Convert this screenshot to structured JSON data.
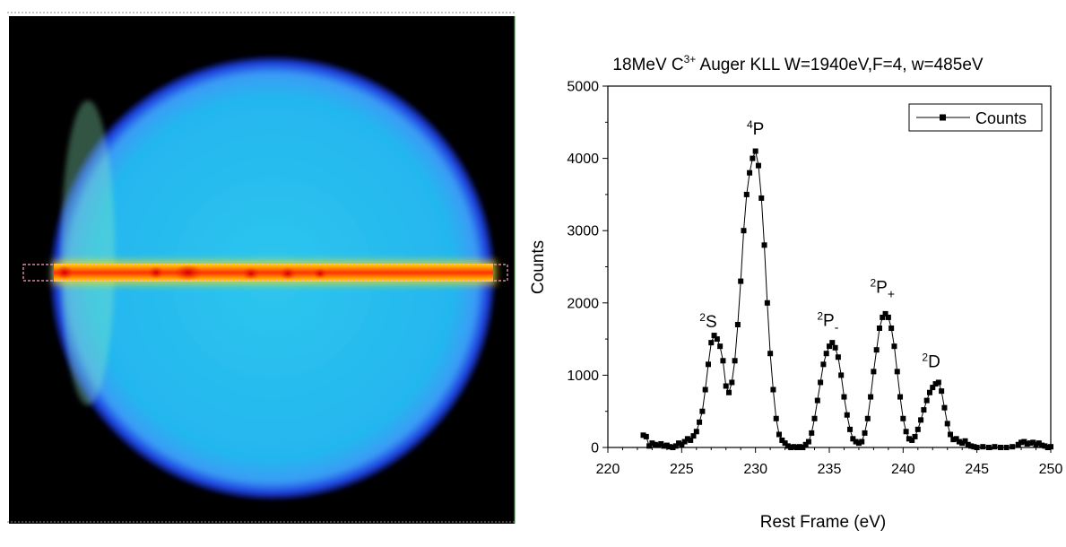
{
  "detector_image": {
    "description_icon": "detector-heatmap-image",
    "colors": {
      "background": "#000000",
      "disk_outer": "#1a3cff",
      "disk_body": "#21b4ef",
      "disk_rim": "#7fe3ff",
      "stripe_core": "#ff2a00",
      "stripe_edge": "#ffd400",
      "selection_box": "#ff9ecf"
    }
  },
  "chart_data": {
    "type": "line",
    "title_parts": {
      "prefix": "18MeV C",
      "superscript": "3+",
      "suffix": " Auger KLL W=1940eV,F=4, w=485eV"
    },
    "xlabel": "Rest Frame (eV)",
    "ylabel": "Counts",
    "xlim": [
      220,
      250
    ],
    "ylim": [
      0,
      5000
    ],
    "x_ticks": [
      220,
      225,
      230,
      235,
      240,
      245,
      250
    ],
    "y_ticks": [
      0,
      1000,
      2000,
      3000,
      4000,
      5000
    ],
    "grid": false,
    "legend": {
      "placement": "top-right",
      "entries": [
        "Counts"
      ]
    },
    "series": [
      {
        "name": "Counts",
        "marker": "square",
        "color": "#000000",
        "points": [
          [
            222.4,
            170
          ],
          [
            222.6,
            150
          ],
          [
            222.8,
            20
          ],
          [
            223.0,
            60
          ],
          [
            223.2,
            40
          ],
          [
            223.4,
            30
          ],
          [
            223.6,
            50
          ],
          [
            223.8,
            20
          ],
          [
            224.0,
            30
          ],
          [
            224.2,
            10
          ],
          [
            224.4,
            0
          ],
          [
            224.6,
            20
          ],
          [
            224.8,
            60
          ],
          [
            225.0,
            40
          ],
          [
            225.2,
            80
          ],
          [
            225.4,
            120
          ],
          [
            225.6,
            100
          ],
          [
            225.8,
            160
          ],
          [
            226.0,
            220
          ],
          [
            226.2,
            350
          ],
          [
            226.4,
            500
          ],
          [
            226.6,
            800
          ],
          [
            226.8,
            1150
          ],
          [
            227.0,
            1450
          ],
          [
            227.2,
            1550
          ],
          [
            227.4,
            1500
          ],
          [
            227.6,
            1400
          ],
          [
            227.8,
            1200
          ],
          [
            228.0,
            850
          ],
          [
            228.2,
            760
          ],
          [
            228.4,
            900
          ],
          [
            228.6,
            1200
          ],
          [
            228.8,
            1700
          ],
          [
            229.0,
            2300
          ],
          [
            229.2,
            3000
          ],
          [
            229.4,
            3500
          ],
          [
            229.6,
            3800
          ],
          [
            229.8,
            4000
          ],
          [
            230.0,
            4100
          ],
          [
            230.2,
            3900
          ],
          [
            230.4,
            3450
          ],
          [
            230.6,
            2800
          ],
          [
            230.8,
            2000
          ],
          [
            231.0,
            1300
          ],
          [
            231.2,
            800
          ],
          [
            231.4,
            400
          ],
          [
            231.6,
            180
          ],
          [
            231.8,
            100
          ],
          [
            232.0,
            60
          ],
          [
            232.2,
            20
          ],
          [
            232.4,
            0
          ],
          [
            232.6,
            10
          ],
          [
            232.8,
            0
          ],
          [
            233.0,
            10
          ],
          [
            233.2,
            0
          ],
          [
            233.4,
            40
          ],
          [
            233.6,
            80
          ],
          [
            233.8,
            200
          ],
          [
            234.0,
            400
          ],
          [
            234.2,
            650
          ],
          [
            234.4,
            900
          ],
          [
            234.6,
            1150
          ],
          [
            234.8,
            1300
          ],
          [
            235.0,
            1400
          ],
          [
            235.2,
            1450
          ],
          [
            235.4,
            1380
          ],
          [
            235.6,
            1250
          ],
          [
            235.8,
            1000
          ],
          [
            236.0,
            700
          ],
          [
            236.2,
            450
          ],
          [
            236.4,
            250
          ],
          [
            236.6,
            120
          ],
          [
            236.8,
            80
          ],
          [
            237.0,
            60
          ],
          [
            237.2,
            80
          ],
          [
            237.4,
            200
          ],
          [
            237.6,
            400
          ],
          [
            237.8,
            700
          ],
          [
            238.0,
            1050
          ],
          [
            238.2,
            1350
          ],
          [
            238.4,
            1650
          ],
          [
            238.6,
            1800
          ],
          [
            238.8,
            1850
          ],
          [
            239.0,
            1800
          ],
          [
            239.2,
            1650
          ],
          [
            239.4,
            1400
          ],
          [
            239.6,
            1050
          ],
          [
            239.8,
            700
          ],
          [
            240.0,
            400
          ],
          [
            240.2,
            220
          ],
          [
            240.4,
            120
          ],
          [
            240.6,
            100
          ],
          [
            240.8,
            150
          ],
          [
            241.0,
            250
          ],
          [
            241.2,
            380
          ],
          [
            241.4,
            520
          ],
          [
            241.6,
            650
          ],
          [
            241.8,
            760
          ],
          [
            242.0,
            830
          ],
          [
            242.2,
            880
          ],
          [
            242.4,
            900
          ],
          [
            242.6,
            780
          ],
          [
            242.8,
            550
          ],
          [
            243.0,
            330
          ],
          [
            243.2,
            180
          ],
          [
            243.4,
            110
          ],
          [
            243.6,
            120
          ],
          [
            243.8,
            80
          ],
          [
            244.0,
            60
          ],
          [
            244.2,
            90
          ],
          [
            244.4,
            40
          ],
          [
            244.6,
            20
          ],
          [
            244.8,
            10
          ],
          [
            245.0,
            0
          ],
          [
            245.4,
            10
          ],
          [
            245.8,
            0
          ],
          [
            246.2,
            10
          ],
          [
            246.6,
            0
          ],
          [
            247.0,
            0
          ],
          [
            247.4,
            10
          ],
          [
            247.8,
            40
          ],
          [
            248.0,
            70
          ],
          [
            248.2,
            80
          ],
          [
            248.4,
            50
          ],
          [
            248.6,
            60
          ],
          [
            248.8,
            70
          ],
          [
            249.0,
            40
          ],
          [
            249.2,
            60
          ],
          [
            249.4,
            30
          ],
          [
            249.6,
            20
          ],
          [
            249.8,
            0
          ],
          [
            250.0,
            10
          ]
        ]
      }
    ],
    "annotations": [
      {
        "base": "4",
        "label": "P",
        "sub": "",
        "x": 230.0,
        "y": 4330
      },
      {
        "base": "2",
        "label": "S",
        "sub": "",
        "x": 226.8,
        "y": 1660
      },
      {
        "base": "2",
        "label": "P",
        "sub": "-",
        "x": 234.9,
        "y": 1680
      },
      {
        "base": "2",
        "label": "P",
        "sub": "+",
        "x": 238.6,
        "y": 2140
      },
      {
        "base": "2",
        "label": "D",
        "sub": "",
        "x": 241.9,
        "y": 1110
      }
    ]
  }
}
